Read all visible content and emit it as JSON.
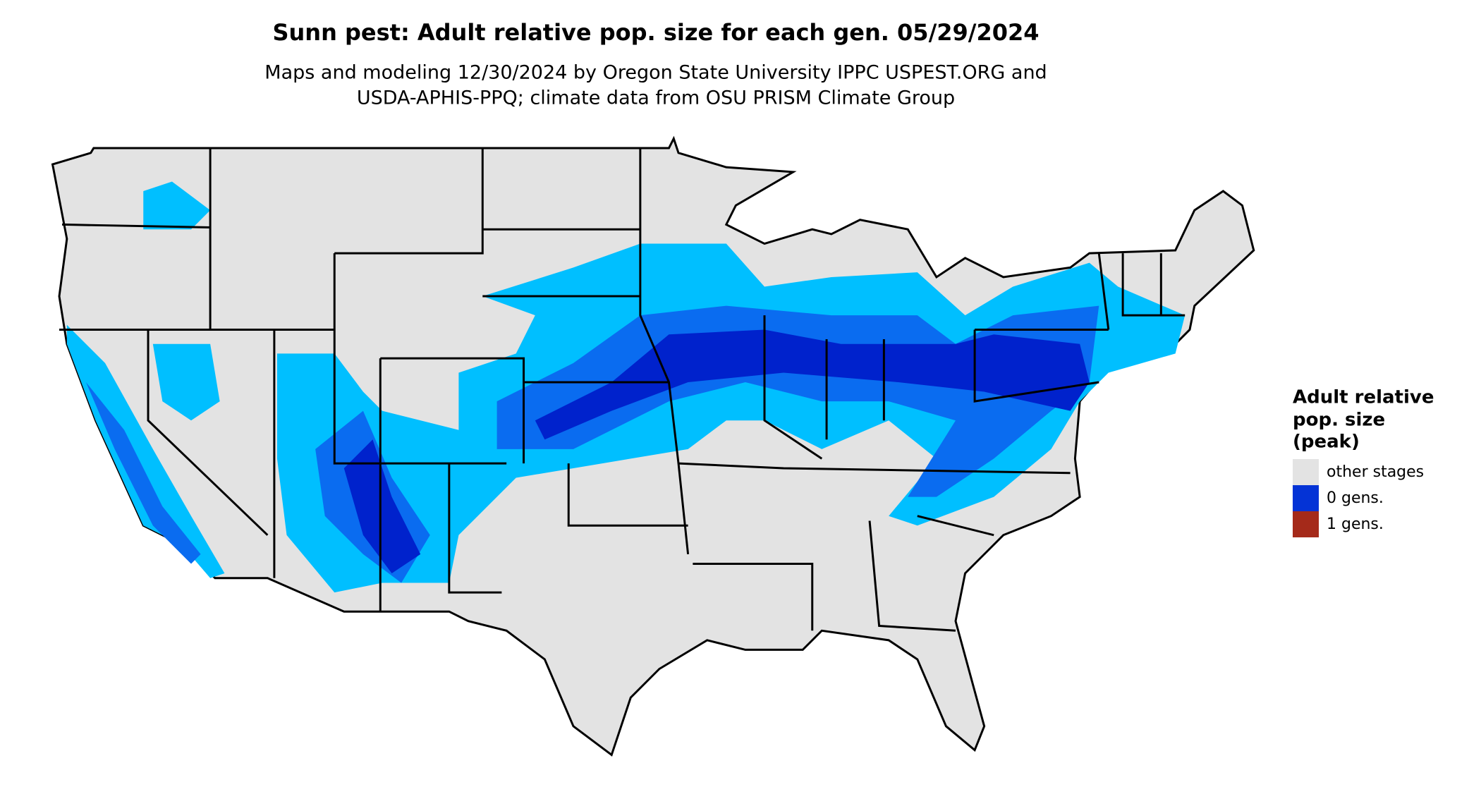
{
  "title": "Sunn pest: Adult relative pop. size for each gen. 05/29/2024",
  "subtitle": [
    "Maps and modeling 12/30/2024 by Oregon State University IPPC USPEST.ORG and",
    "USDA-APHIS-PPQ; climate data from OSU PRISM Climate Group"
  ],
  "legend": {
    "title": [
      "Adult relative",
      "pop. size",
      "(peak)"
    ],
    "items": [
      {
        "label": "other stages",
        "color": "#e3e3e3"
      },
      {
        "label": "0 gens.",
        "color": "#0433d6"
      },
      {
        "label": "1 gens.",
        "color": "#a52a1a"
      }
    ]
  }
}
